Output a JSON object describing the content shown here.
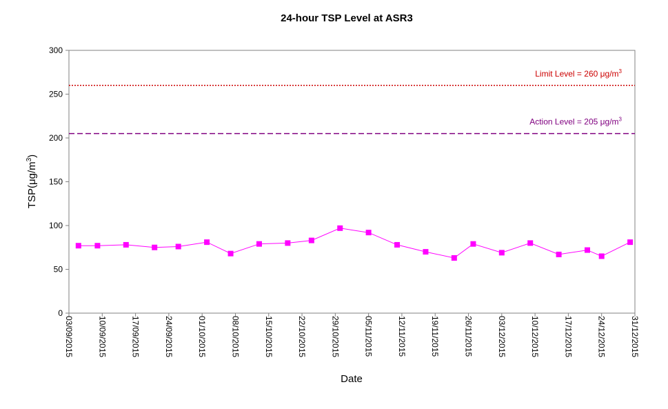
{
  "chart_data": {
    "type": "line",
    "title": "24-hour TSP Level at ASR3",
    "xlabel": "Date",
    "ylabel_main": "TSP(",
    "ylabel_unit": "μg/m",
    "ylabel_sup": "3",
    "ylabel_close": ")",
    "ylim": [
      0,
      300
    ],
    "yticks": [
      0,
      50,
      100,
      150,
      200,
      250,
      300
    ],
    "xlim": [
      "03/09/2015",
      "31/12/2015"
    ],
    "xticks": [
      "03/09/2015",
      "10/09/2015",
      "17/09/2015",
      "24/09/2015",
      "01/10/2015",
      "08/10/2015",
      "15/10/2015",
      "22/10/2015",
      "29/10/2015",
      "05/11/2015",
      "12/11/2015",
      "19/11/2015",
      "26/11/2015",
      "03/12/2015",
      "10/12/2015",
      "17/12/2015",
      "24/12/2015",
      "31/12/2015"
    ],
    "grid": false,
    "legend": "none",
    "series": [
      {
        "color": "#ff00ff",
        "marker": "square",
        "points": [
          {
            "x": "05/09/2015",
            "y": 77
          },
          {
            "x": "09/09/2015",
            "y": 77
          },
          {
            "x": "15/09/2015",
            "y": 78
          },
          {
            "x": "21/09/2015",
            "y": 75
          },
          {
            "x": "26/09/2015",
            "y": 76
          },
          {
            "x": "02/10/2015",
            "y": 81
          },
          {
            "x": "07/10/2015",
            "y": 68
          },
          {
            "x": "13/10/2015",
            "y": 79
          },
          {
            "x": "19/10/2015",
            "y": 80
          },
          {
            "x": "24/10/2015",
            "y": 83
          },
          {
            "x": "30/10/2015",
            "y": 97
          },
          {
            "x": "05/11/2015",
            "y": 92
          },
          {
            "x": "11/11/2015",
            "y": 78
          },
          {
            "x": "17/11/2015",
            "y": 70
          },
          {
            "x": "23/11/2015",
            "y": 63
          },
          {
            "x": "27/11/2015",
            "y": 79
          },
          {
            "x": "03/12/2015",
            "y": 69
          },
          {
            "x": "09/12/2015",
            "y": 80
          },
          {
            "x": "15/12/2015",
            "y": 67
          },
          {
            "x": "21/12/2015",
            "y": 72
          },
          {
            "x": "24/12/2015",
            "y": 65
          },
          {
            "x": "30/12/2015",
            "y": 81
          }
        ]
      }
    ],
    "reference_lines": [
      {
        "key": "limit",
        "value": 260,
        "text": "Limit Level  = 260 μg/m",
        "sup": "3",
        "color": "#cc0000",
        "style": "dotted"
      },
      {
        "key": "action",
        "value": 205,
        "text": "Action Level  = 205 μg/m",
        "sup": "3",
        "color": "#800080",
        "style": "dashed"
      }
    ]
  }
}
